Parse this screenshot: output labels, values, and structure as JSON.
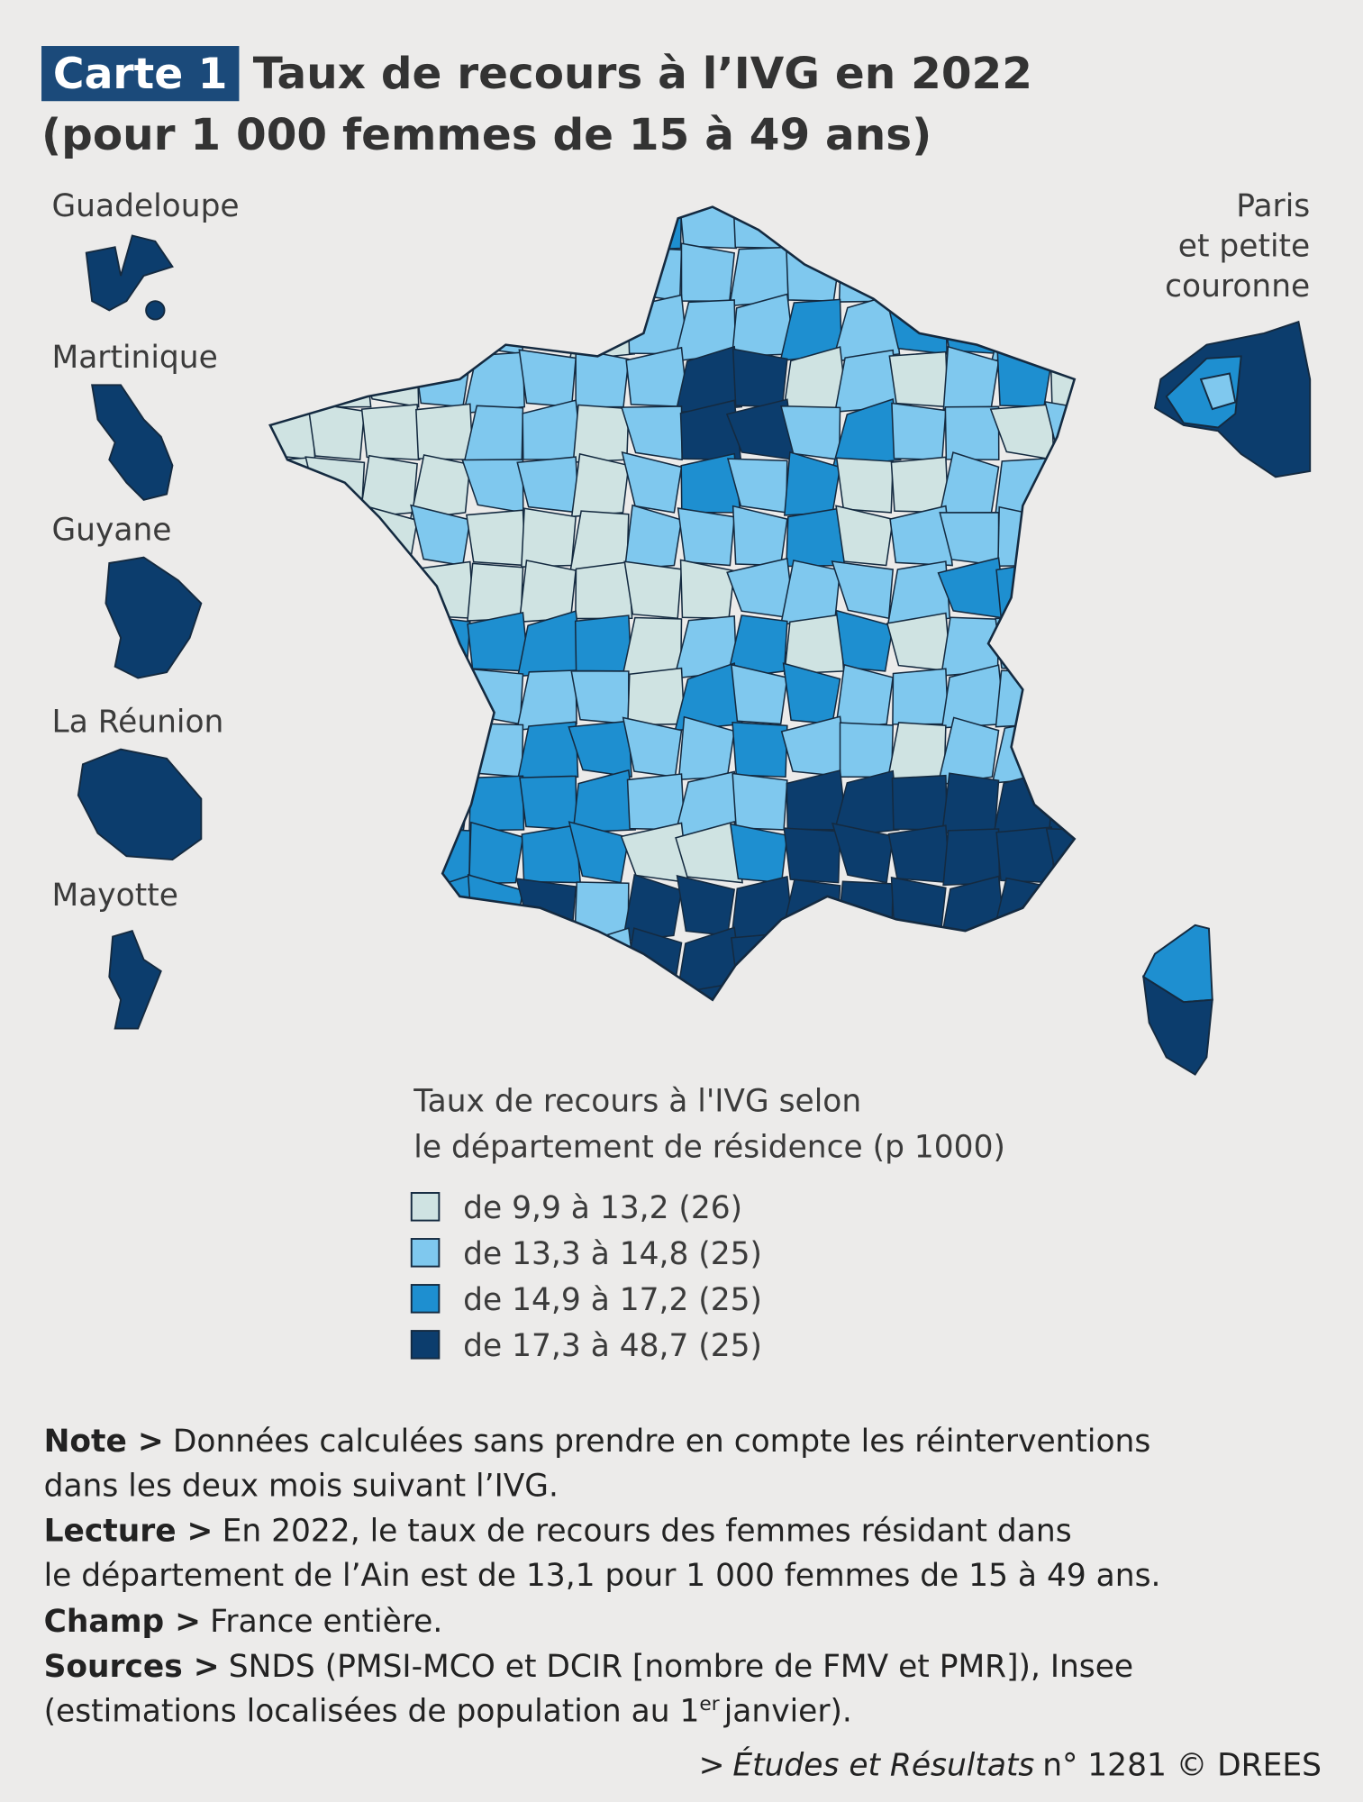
{
  "header": {
    "label": "Carte 1",
    "title": "Taux de recours à l’IVG en 2022",
    "subtitle": "(pour 1 000 femmes de 15 à 49 ans)"
  },
  "insets": [
    "Guadeloupe",
    "Martinique",
    "Guyane",
    "La Réunion",
    "Mayotte"
  ],
  "paris_inset": [
    "Paris",
    "et petite",
    "couronne"
  ],
  "legend": {
    "title": [
      "Taux de recours à l'IVG selon",
      "le département de résidence (p 1000)"
    ],
    "items": [
      {
        "label": "de 9,9 à 13,2 (26)",
        "color": "#cfe3e2"
      },
      {
        "label": "de 13,3 à 14,8 (25)",
        "color": "#7fc8ee"
      },
      {
        "label": "de 14,9 à 17,2 (25)",
        "color": "#1e8fd0"
      },
      {
        "label": "de 17,3 à 48,7 (25)",
        "color": "#0c3d6d"
      }
    ]
  },
  "notes": [
    {
      "label": "Note >",
      "lines": [
        "Données calculées sans prendre en compte les réinterventions",
        "dans les deux mois suivant l’IVG."
      ]
    },
    {
      "label": "Lecture >",
      "lines": [
        "En 2022, le taux de recours des femmes résidant dans",
        "le département de l’Ain est de 13,1 pour 1 000 femmes de 15 à 49 ans."
      ]
    },
    {
      "label": "Champ >",
      "lines": [
        "France entière."
      ]
    },
    {
      "label": "Sources >",
      "lines": [
        "SNDS (PMSI-MCO et DCIR [nombre de FMV et PMR]), Insee",
        "(estimations localisées de population au 1"
      ],
      "sup": "er",
      "rest": "janvier)."
    }
  ],
  "source": {
    "prefix": ">",
    "publication": "Études et Résultats",
    "number": "n° 1281 © DREES"
  }
}
